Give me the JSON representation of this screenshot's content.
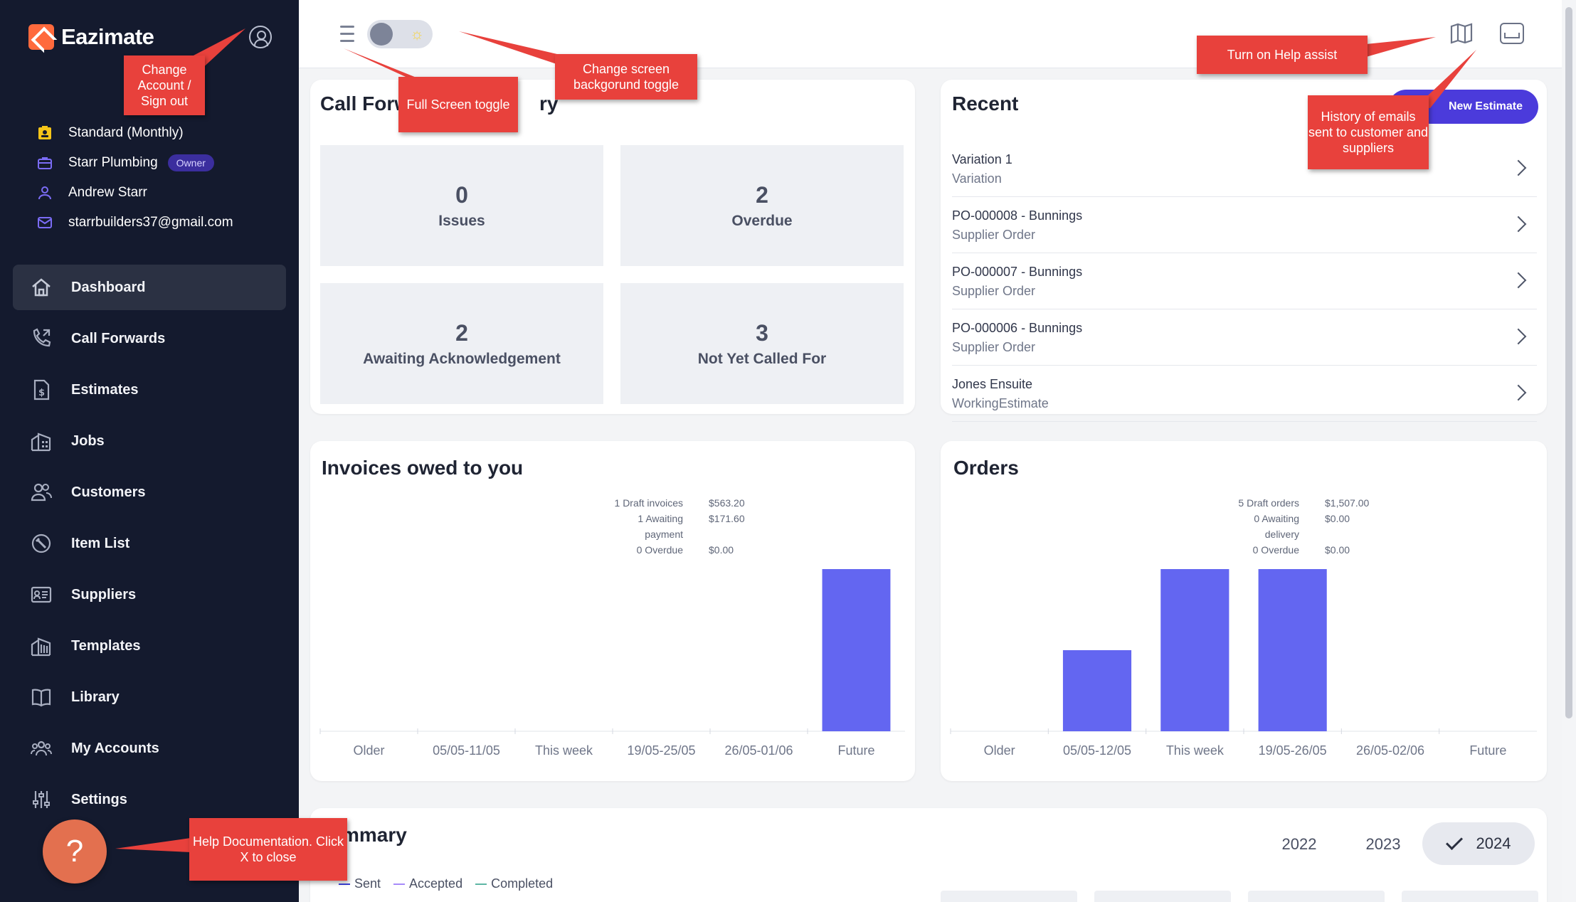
{
  "app": {
    "name": "Eazimate"
  },
  "account": {
    "plan": "Standard (Monthly)",
    "business": "Starr Plumbing",
    "role_badge": "Owner",
    "user": "Andrew Starr",
    "email": "starrbuilders37@gmail.com"
  },
  "nav": [
    {
      "label": "Dashboard",
      "icon": "home-icon",
      "active": true
    },
    {
      "label": "Call Forwards",
      "icon": "phone-forward-icon"
    },
    {
      "label": "Estimates",
      "icon": "estimate-document-icon"
    },
    {
      "label": "Jobs",
      "icon": "building-icon"
    },
    {
      "label": "Customers",
      "icon": "customers-icon"
    },
    {
      "label": "Item List",
      "icon": "item-list-icon"
    },
    {
      "label": "Suppliers",
      "icon": "supplier-card-icon"
    },
    {
      "label": "Templates",
      "icon": "templates-icon"
    },
    {
      "label": "Library",
      "icon": "book-icon"
    },
    {
      "label": "My Accounts",
      "icon": "accounts-group-icon"
    },
    {
      "label": "Settings",
      "icon": "sliders-icon"
    }
  ],
  "help_fab": {
    "label": "?"
  },
  "call_forwards": {
    "title": "Call Forw",
    "title_tail": "ry",
    "stats": [
      {
        "value": "0",
        "label": "Issues"
      },
      {
        "value": "2",
        "label": "Overdue"
      },
      {
        "value": "2",
        "label": "Awaiting Acknowledgement"
      },
      {
        "value": "3",
        "label": "Not Yet Called For"
      }
    ]
  },
  "recent": {
    "title": "Recent",
    "new_estimate_label": "New Estimate",
    "items": [
      {
        "name": "Variation 1",
        "type": "Variation"
      },
      {
        "name": "PO-000008 - Bunnings",
        "type": "Supplier Order"
      },
      {
        "name": "PO-000007 - Bunnings",
        "type": "Supplier Order"
      },
      {
        "name": "PO-000006 - Bunnings",
        "type": "Supplier Order"
      },
      {
        "name": "Jones Ensuite",
        "type": "WorkingEstimate"
      }
    ]
  },
  "invoices": {
    "title": "Invoices owed to you",
    "legend": [
      {
        "label": "1 Draft invoices",
        "value": "$563.20"
      },
      {
        "label": "1 Awaiting payment",
        "value": "$171.60"
      },
      {
        "label": "0 Overdue",
        "value": "$0.00"
      }
    ]
  },
  "orders": {
    "title": "Orders",
    "legend": [
      {
        "label": "5 Draft orders",
        "value": "$1,507.00"
      },
      {
        "label": "0 Awaiting delivery",
        "value": "$0.00"
      },
      {
        "label": "0 Overdue",
        "value": "$0.00"
      }
    ]
  },
  "chart_data": [
    {
      "type": "bar",
      "title": "Invoices owed to you",
      "categories": [
        "Older",
        "05/05-11/05",
        "This week",
        "19/05-25/05",
        "26/05-01/06",
        "Future"
      ],
      "values": [
        0,
        0,
        0,
        0,
        0,
        1
      ],
      "color": "#6366f1"
    },
    {
      "type": "bar",
      "title": "Orders",
      "categories": [
        "Older",
        "05/05-12/05",
        "This week",
        "19/05-26/05",
        "26/05-02/06",
        "Future"
      ],
      "values": [
        0,
        1,
        2,
        2,
        0,
        0
      ],
      "color": "#6366f1"
    }
  ],
  "summary": {
    "title": "mmary",
    "years": [
      "2022",
      "2023",
      "2024"
    ],
    "selected_year": "2024",
    "legend": [
      {
        "label": "Sent",
        "color": "#3b3fd8"
      },
      {
        "label": "Accepted",
        "color": "#a78bfa"
      },
      {
        "label": "Completed",
        "color": "#5eb6a5"
      }
    ]
  },
  "callouts": {
    "account": "Change Account / Sign out",
    "fullscreen": "Full Screen toggle",
    "background": "Change screen backgorund toggle",
    "help_assist": "Turn on Help assist",
    "email_history": "History of emails sent to customer and suppliers",
    "help_docs": "Help Documentation. Click X to close"
  },
  "colors": {
    "sidebar": "#141a2e",
    "accent": "#6366f1",
    "callout": "#e8413c",
    "fab": "#e3704f"
  }
}
